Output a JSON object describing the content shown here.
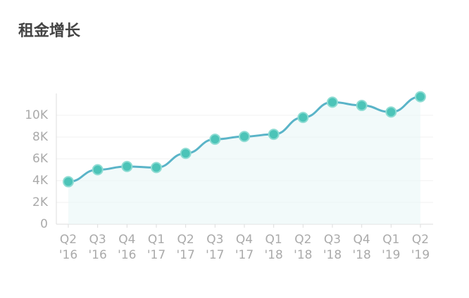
{
  "chart_data": {
    "type": "line",
    "title": "租金增长",
    "categories": [
      "Q2\n'16",
      "Q3\n'16",
      "Q4\n'16",
      "Q1\n'17",
      "Q2\n'17",
      "Q3\n'17",
      "Q4\n'17",
      "Q1\n'18",
      "Q2\n'18",
      "Q3\n'18",
      "Q4\n'18",
      "Q1\n'19",
      "Q2\n'19"
    ],
    "values": [
      3900,
      5000,
      5300,
      5200,
      6500,
      7800,
      8050,
      8250,
      9800,
      11200,
      10900,
      10300,
      11700
    ],
    "color": "#5ab4c8",
    "ylim": [
      0,
      12000
    ],
    "yticks": [
      0,
      {
        "value": 2000,
        "label": "2K"
      },
      {
        "value": 4000,
        "label": "4K"
      },
      {
        "value": 6000,
        "label": "6K"
      },
      {
        "value": 8000,
        "label": "8K"
      },
      {
        "value": 10000,
        "label": "10K"
      }
    ],
    "grid": true
  }
}
